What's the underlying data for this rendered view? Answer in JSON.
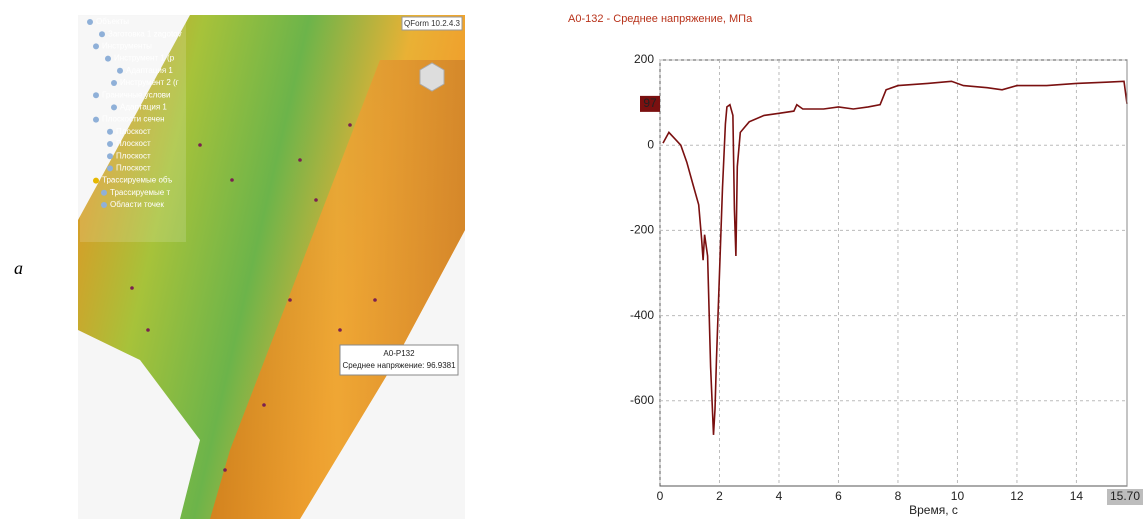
{
  "figure_label": "а",
  "viewer": {
    "version": "QForm 10.2.4.3",
    "tree": [
      "Объекты",
      "Заготовка 1 zagotov",
      "Инструменты",
      "Инструмент 1 (р",
      "Адаптация 1",
      "Инструмент 2 (г",
      "Граничные услови",
      "Адаптация 1",
      "Плоскости сечен",
      "Плоскост",
      "Плоскост",
      "Плоскост",
      "Плоскост",
      "Трассируемые объ",
      "Трассируемые т",
      "Области точек"
    ],
    "tooltip": {
      "title": "A0-P132",
      "text": "Среднее напряжение: 96.9381"
    }
  },
  "chart_data": {
    "type": "line",
    "title": "А0-132 - Среднее напряжение, МПа",
    "x_label": "Время, с",
    "x": [
      0.1,
      0.3,
      0.5,
      0.7,
      0.9,
      1.1,
      1.3,
      1.4,
      1.45,
      1.5,
      1.6,
      1.7,
      1.8,
      1.85,
      1.9,
      2.0,
      2.1,
      2.2,
      2.25,
      2.35,
      2.45,
      2.5,
      2.55,
      2.6,
      2.7,
      3.0,
      3.5,
      4.0,
      4.5,
      4.6,
      4.8,
      5.5,
      6.0,
      6.5,
      7.0,
      7.4,
      7.6,
      8.0,
      9.0,
      9.8,
      10.2,
      11.0,
      11.5,
      12.0,
      13.0,
      14.0,
      15.0,
      15.6,
      15.7
    ],
    "values": [
      5,
      30,
      15,
      0,
      -40,
      -90,
      -140,
      -220,
      -270,
      -210,
      -260,
      -520,
      -680,
      -620,
      -500,
      -300,
      -100,
      50,
      90,
      95,
      70,
      -150,
      -260,
      -50,
      30,
      55,
      70,
      75,
      80,
      95,
      85,
      85,
      90,
      85,
      90,
      95,
      130,
      140,
      145,
      150,
      140,
      135,
      130,
      140,
      140,
      145,
      148,
      150,
      97
    ],
    "color": "#7a1010",
    "xlim": [
      0,
      15.7
    ],
    "ylim": [
      -800,
      200
    ],
    "xticks": [
      0,
      2,
      4,
      6,
      8,
      10,
      12,
      14
    ],
    "yticks": [
      200,
      0,
      -200,
      -400,
      -600
    ],
    "grid": true,
    "value_cursor": 97,
    "time_cursor": {
      "value": 15.7,
      "label": "15.70"
    }
  }
}
